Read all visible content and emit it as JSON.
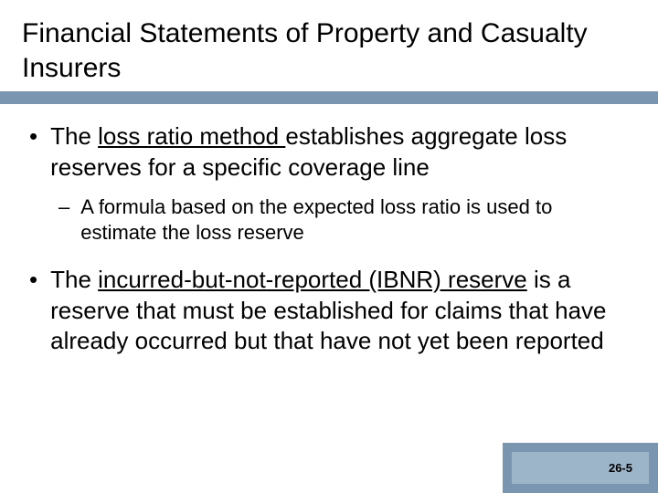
{
  "title": "Financial Statements of Property and Casualty Insurers",
  "bullets": [
    {
      "level": 1,
      "marker": "•",
      "segments": [
        {
          "text": "The ",
          "underline": false
        },
        {
          "text": "loss ratio method ",
          "underline": true
        },
        {
          "text": "establishes aggregate loss reserves for a specific coverage line",
          "underline": false
        }
      ]
    },
    {
      "level": 2,
      "marker": "–",
      "segments": [
        {
          "text": "A formula based on the expected loss ratio is used to estimate the loss reserve",
          "underline": false
        }
      ]
    },
    {
      "level": 1,
      "marker": "•",
      "segments": [
        {
          "text": "The ",
          "underline": false
        },
        {
          "text": "incurred-but-not-reported (IBNR) reserve",
          "underline": true
        },
        {
          "text": " is a reserve that must be established for claims that have already occurred but that have not yet been reported",
          "underline": false
        }
      ]
    }
  ],
  "pageNumber": "26-5",
  "colors": {
    "accentBar": "#7a95b0",
    "cornerOuter": "#7a95b0",
    "cornerInner": "#9db5c9",
    "background": "#ffffff",
    "text": "#000000"
  }
}
